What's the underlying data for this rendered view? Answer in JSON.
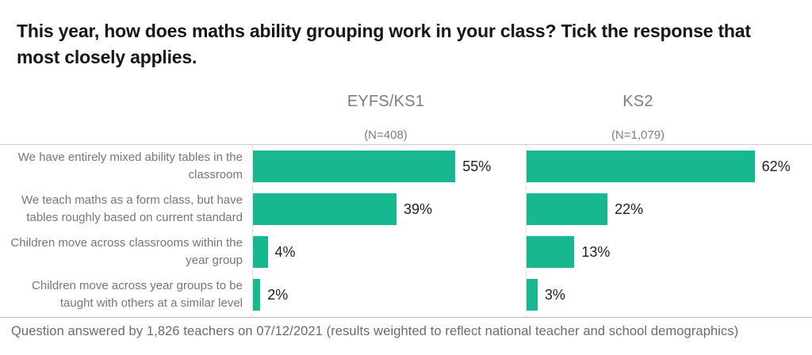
{
  "title": "This year, how does maths ability grouping work in your class? Tick the response that most closely applies.",
  "panels": [
    {
      "label": "EYFS/KS1",
      "n_label": "(N=408)"
    },
    {
      "label": "KS2",
      "n_label": "(N=1,079)"
    }
  ],
  "footer": "Question answered by 1,826 teachers on 07/12/2021 (results weighted to reflect national teacher and school demographics)",
  "colors": {
    "bar": "#17b890",
    "divider": "#cfcfcf",
    "label_gray": "#767676"
  },
  "chart_data": {
    "type": "bar",
    "orientation": "horizontal",
    "title": "This year, how does maths ability grouping work in your class? Tick the response that most closely applies.",
    "categories": [
      "We have entirely mixed ability tables in the classroom",
      "We teach maths as a form class, but have tables roughly based on current standard",
      "Children move across classrooms within the year group",
      "Children move across year groups to be taught with others at a similar level"
    ],
    "series": [
      {
        "name": "EYFS/KS1",
        "n": 408,
        "values": [
          55,
          39,
          4,
          2
        ],
        "labels": [
          "55%",
          "39%",
          "4%",
          "2%"
        ]
      },
      {
        "name": "KS2",
        "n": 1079,
        "values": [
          62,
          22,
          13,
          3
        ],
        "labels": [
          "62%",
          "22%",
          "13%",
          "3%"
        ]
      }
    ],
    "value_unit": "%",
    "xlim": [
      0,
      70
    ],
    "grid": false,
    "legend": "none",
    "source_note": "Question answered by 1,826 teachers on 07/12/2021 (results weighted to reflect national teacher and school demographics)"
  }
}
